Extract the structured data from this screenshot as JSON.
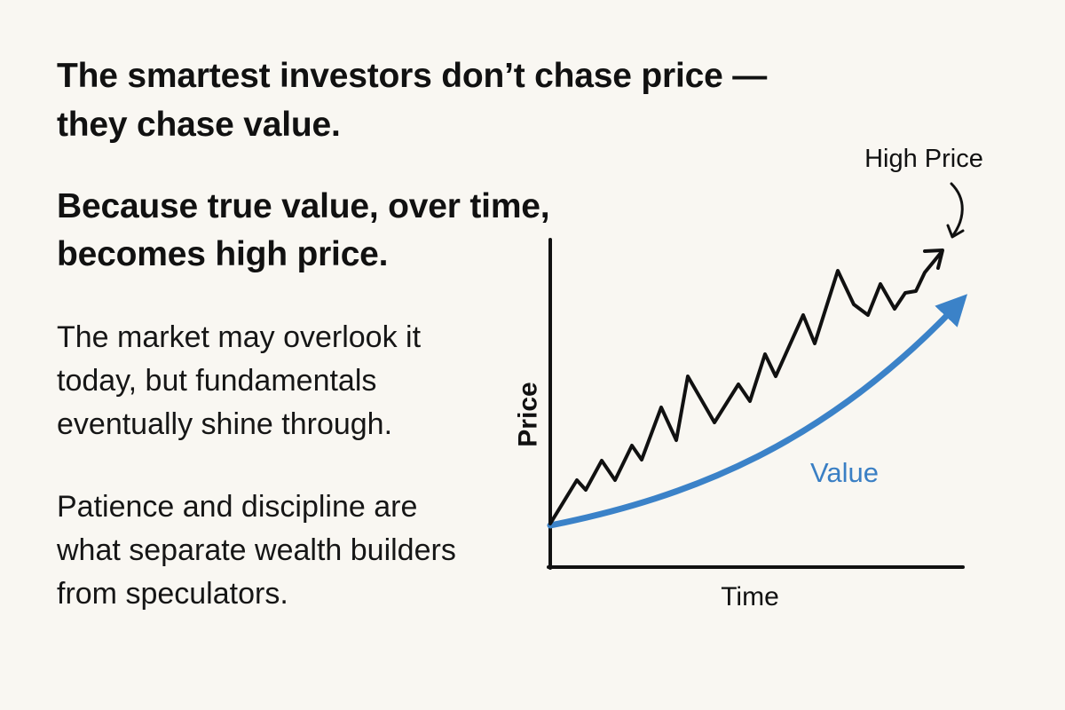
{
  "headline": {
    "lines": [
      "The smartest investors don’t chase price —",
      "they chase value."
    ]
  },
  "subhead": {
    "lines": [
      "Because true value, over time,",
      "becomes high price."
    ]
  },
  "paragraph_1": {
    "lines": [
      "The market may overlook it",
      "today, but fundamentals",
      "eventually shine through."
    ]
  },
  "paragraph_2": {
    "lines": [
      "Patience and discipline are",
      "what separate wealth builders",
      "from speculators."
    ]
  },
  "diagram": {
    "y_axis_label": "Price",
    "x_axis_label": "Time",
    "value_label": "Value",
    "high_price_label": "High Price",
    "colors": {
      "price_line": "#111111",
      "value_line": "#3b82c8",
      "axis": "#111111",
      "background": "#f9f7f2"
    }
  }
}
